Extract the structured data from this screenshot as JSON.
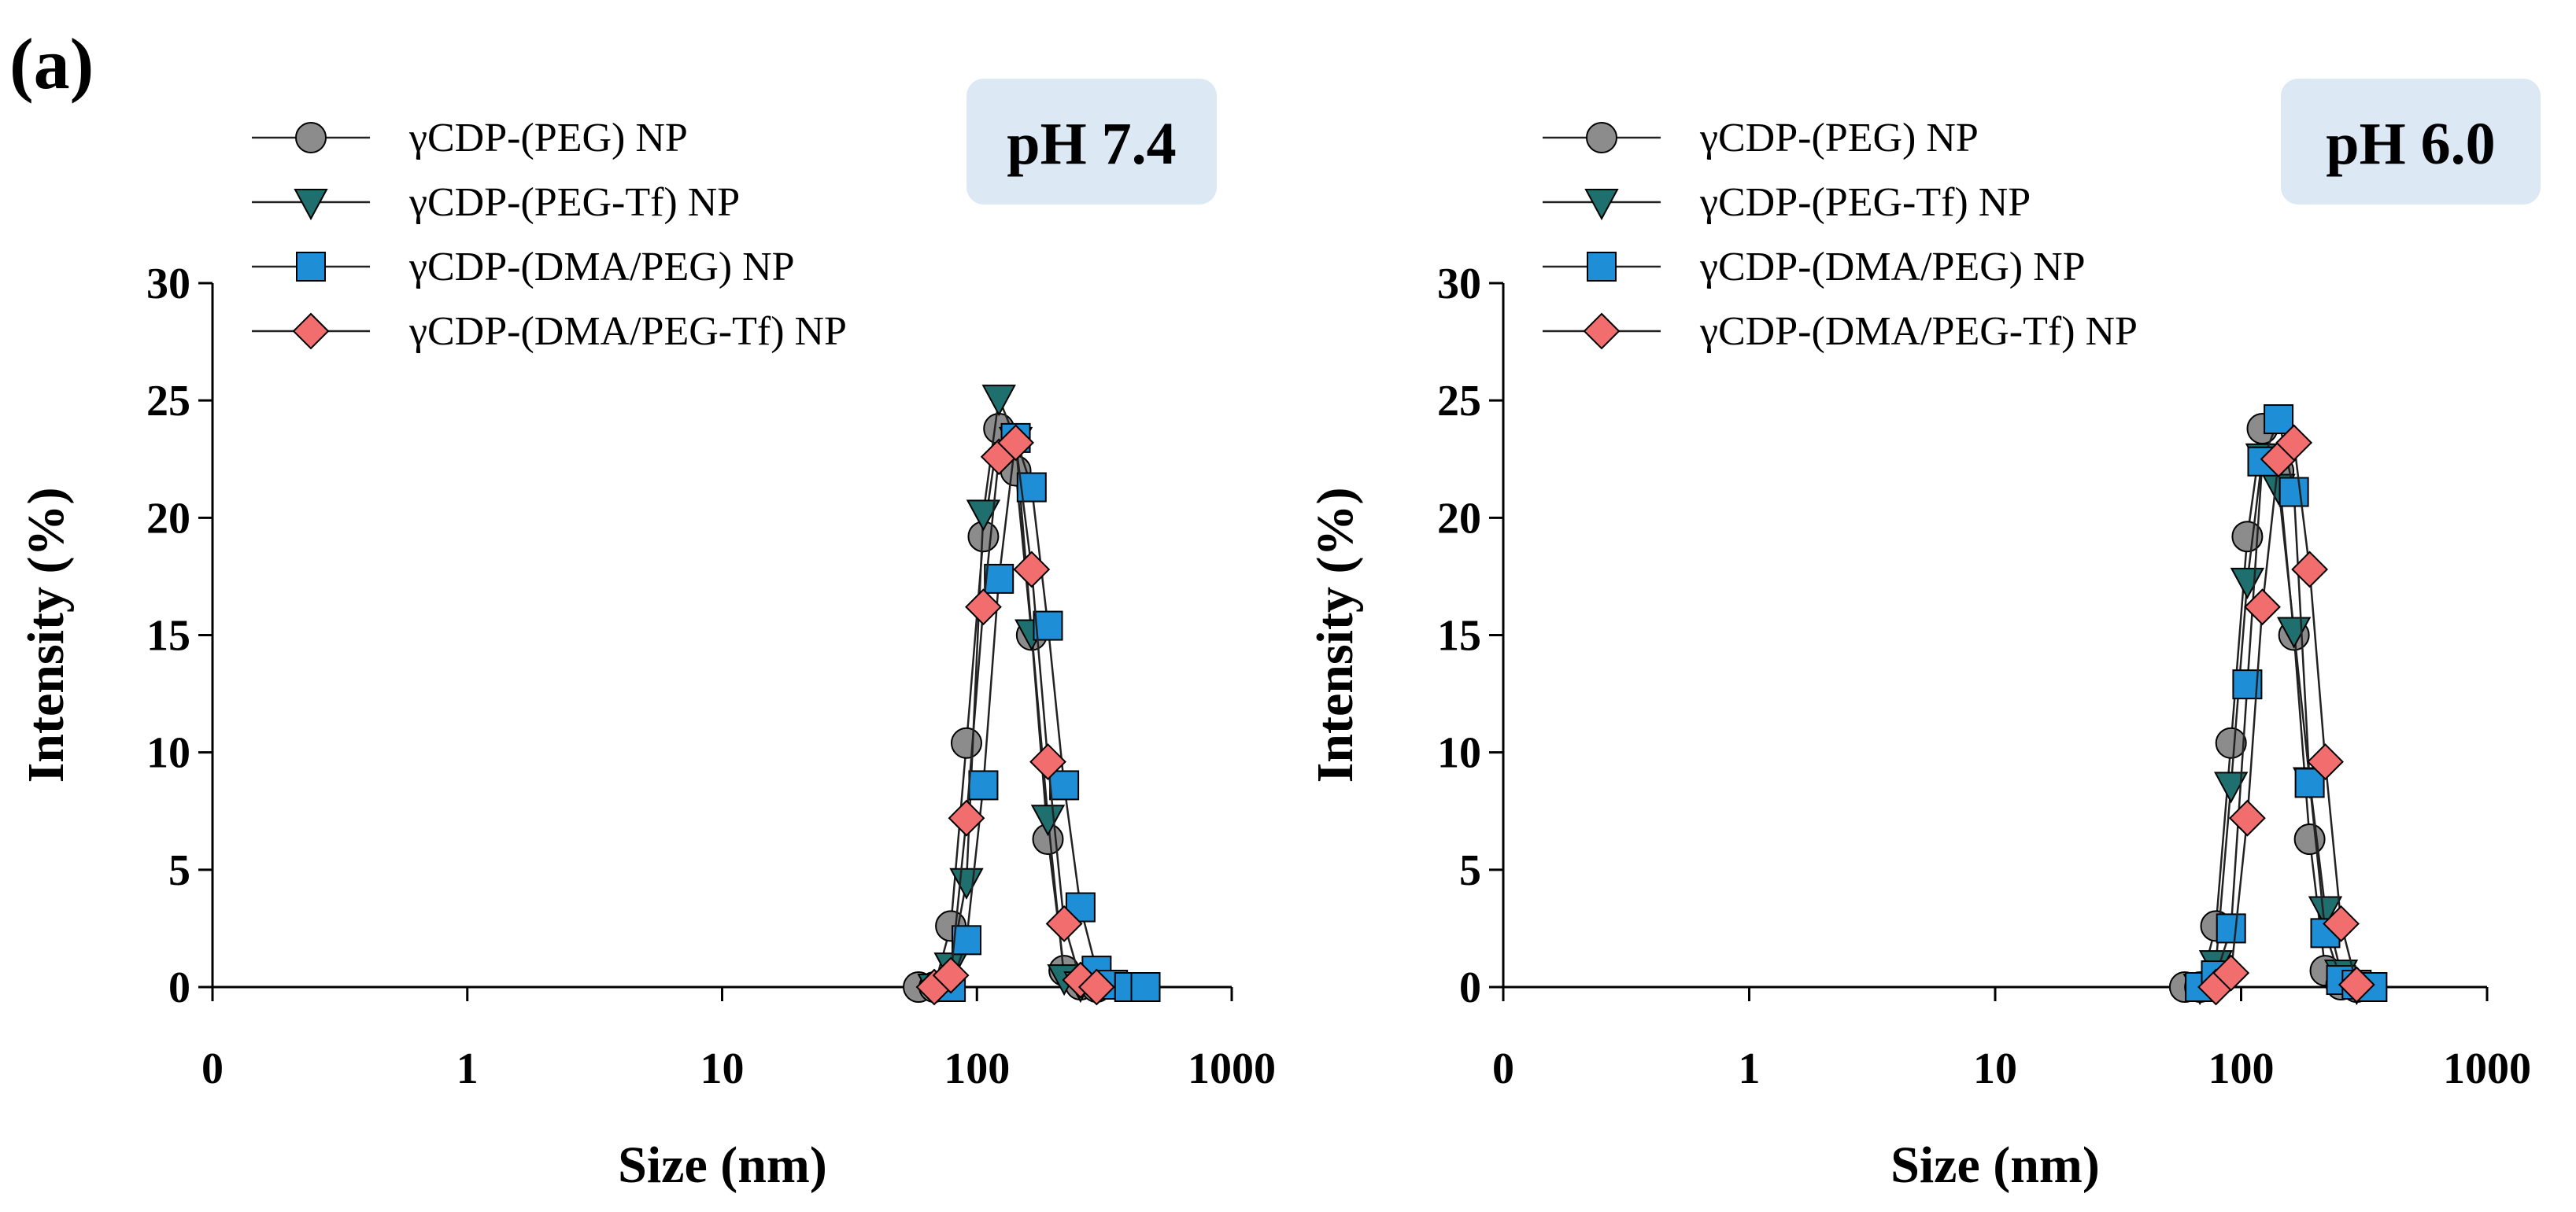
{
  "figure_label": "(a)",
  "chart_data": [
    {
      "type": "line",
      "title": "pH 7.4",
      "xlabel": "Size (nm)",
      "ylabel": "Intensity (%)",
      "xscale": "log",
      "x_tick_labels": [
        "0",
        "1",
        "10",
        "100",
        "1000"
      ],
      "x_tick_values": [
        0.1,
        1,
        10,
        100,
        1000
      ],
      "xlim": [
        0.1,
        1000
      ],
      "ylim": [
        0,
        30
      ],
      "y_ticks": [
        0,
        5,
        10,
        15,
        20,
        25,
        30
      ],
      "legend_position": "top-left",
      "series": [
        {
          "name": "γCDP-(PEG) NP",
          "marker": "circle",
          "color": "#8c8c8c",
          "points": [
            [
              59,
              0
            ],
            [
              68,
              0
            ],
            [
              79,
              2.6
            ],
            [
              91,
              10.4
            ],
            [
              106,
              19.2
            ],
            [
              122,
              23.8
            ],
            [
              142,
              22.0
            ],
            [
              164,
              15.0
            ],
            [
              190,
              6.3
            ],
            [
              220,
              0.7
            ],
            [
              255,
              0.1
            ],
            [
              295,
              0
            ]
          ]
        },
        {
          "name": "γCDP-(PEG-Tf) NP",
          "marker": "triangle-down",
          "color": "#1f6f6f",
          "points": [
            [
              68,
              0
            ],
            [
              79,
              0.9
            ],
            [
              91,
              4.5
            ],
            [
              106,
              20.2
            ],
            [
              122,
              25.1
            ],
            [
              142,
              23.3
            ],
            [
              164,
              15.1
            ],
            [
              190,
              7.2
            ],
            [
              220,
              0.4
            ],
            [
              255,
              0.1
            ],
            [
              295,
              0
            ]
          ]
        },
        {
          "name": "γCDP-(DMA/PEG) NP",
          "marker": "square",
          "color": "#1e8fd6",
          "points": [
            [
              79,
              0
            ],
            [
              91,
              2.0
            ],
            [
              106,
              8.6
            ],
            [
              122,
              17.4
            ],
            [
              142,
              23.4
            ],
            [
              164,
              21.3
            ],
            [
              190,
              15.4
            ],
            [
              220,
              8.6
            ],
            [
              255,
              3.4
            ],
            [
              295,
              0.7
            ],
            [
              342,
              0.1
            ],
            [
              396,
              0
            ],
            [
              459,
              0
            ]
          ]
        },
        {
          "name": "γCDP-(DMA/PEG-Tf) NP",
          "marker": "diamond",
          "color": "#f26d6d",
          "points": [
            [
              68,
              0
            ],
            [
              79,
              0.5
            ],
            [
              91,
              7.2
            ],
            [
              106,
              16.2
            ],
            [
              122,
              22.6
            ],
            [
              142,
              23.2
            ],
            [
              164,
              17.8
            ],
            [
              190,
              9.6
            ],
            [
              220,
              2.7
            ],
            [
              255,
              0.3
            ],
            [
              295,
              0
            ]
          ]
        }
      ]
    },
    {
      "type": "line",
      "title": "pH 6.0",
      "xlabel": "Size (nm)",
      "ylabel": "Intensity (%)",
      "xscale": "log",
      "x_tick_labels": [
        "0",
        "1",
        "10",
        "100",
        "1000"
      ],
      "x_tick_values": [
        0.1,
        1,
        10,
        100,
        1000
      ],
      "xlim": [
        0.1,
        1000
      ],
      "ylim": [
        0,
        30
      ],
      "y_ticks": [
        0,
        5,
        10,
        15,
        20,
        25,
        30
      ],
      "legend_position": "top-left",
      "series": [
        {
          "name": "γCDP-(PEG) NP",
          "marker": "circle",
          "color": "#8c8c8c",
          "points": [
            [
              59,
              0
            ],
            [
              68,
              0
            ],
            [
              79,
              2.6
            ],
            [
              91,
              10.4
            ],
            [
              106,
              19.2
            ],
            [
              122,
              23.8
            ],
            [
              142,
              22.0
            ],
            [
              164,
              15.0
            ],
            [
              190,
              6.3
            ],
            [
              220,
              0.7
            ],
            [
              255,
              0.1
            ],
            [
              295,
              0
            ]
          ]
        },
        {
          "name": "γCDP-(PEG-Tf) NP",
          "marker": "triangle-down",
          "color": "#1f6f6f",
          "points": [
            [
              68,
              0
            ],
            [
              79,
              1.0
            ],
            [
              91,
              8.6
            ],
            [
              106,
              17.3
            ],
            [
              122,
              22.6
            ],
            [
              142,
              21.3
            ],
            [
              164,
              15.2
            ],
            [
              190,
              8.8
            ],
            [
              220,
              3.3
            ],
            [
              255,
              0.6
            ],
            [
              295,
              0
            ]
          ]
        },
        {
          "name": "γCDP-(DMA/PEG) NP",
          "marker": "square",
          "color": "#1e8fd6",
          "points": [
            [
              68,
              0
            ],
            [
              79,
              0.5
            ],
            [
              91,
              2.5
            ],
            [
              106,
              12.9
            ],
            [
              122,
              22.4
            ],
            [
              142,
              24.2
            ],
            [
              164,
              21.1
            ],
            [
              190,
              8.7
            ],
            [
              220,
              2.3
            ],
            [
              255,
              0.3
            ],
            [
              295,
              0.1
            ],
            [
              342,
              0
            ]
          ]
        },
        {
          "name": "γCDP-(DMA/PEG-Tf) NP",
          "marker": "diamond",
          "color": "#f26d6d",
          "points": [
            [
              79,
              0
            ],
            [
              91,
              0.6
            ],
            [
              106,
              7.2
            ],
            [
              122,
              16.2
            ],
            [
              142,
              22.5
            ],
            [
              164,
              23.2
            ],
            [
              190,
              17.8
            ],
            [
              220,
              9.6
            ],
            [
              255,
              2.7
            ],
            [
              295,
              0.1
            ]
          ]
        }
      ]
    }
  ]
}
